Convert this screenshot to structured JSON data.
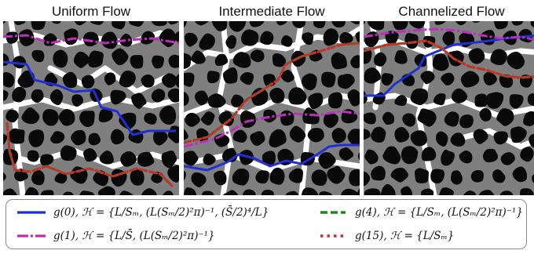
{
  "panels": [
    {
      "title": "Uniform Flow"
    },
    {
      "title": "Intermediate Flow"
    },
    {
      "title": "Channelized Flow"
    }
  ],
  "colors": {
    "solid": "#0a0a0a",
    "pore": "#7f7f7f",
    "channel": "#ffffff",
    "g0": "#1f2fd6",
    "g1": "#c02bc0",
    "g4": "#1d8a1d",
    "g15": "#d42a2a"
  },
  "legend": [
    {
      "id": "g0",
      "style": "solid",
      "text": "g(0), ℋ = {L/Sₘ, (L(Sₘ/2)²π)⁻¹, (S̄/2)⁴/L}"
    },
    {
      "id": "g1",
      "style": "dash-dot",
      "text": "g(1), ℋ = {L/S̄, (L(Sₘ/2)²π)⁻¹}"
    },
    {
      "id": "g4",
      "style": "dashed",
      "text": "g(4), ℋ = {L/Sₘ, (L(Sₘ/2)²π)⁻¹}"
    },
    {
      "id": "g15",
      "style": "dotted",
      "text": "g(15), ℋ = {L/Sₘ}"
    }
  ]
}
